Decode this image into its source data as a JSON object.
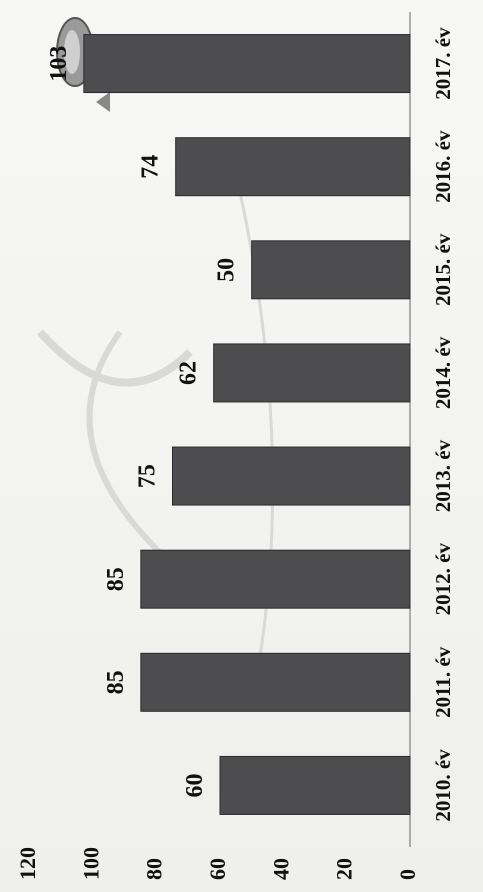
{
  "chart_data": {
    "type": "bar",
    "categories": [
      "2010. év",
      "2011. év",
      "2012. év",
      "2013. év",
      "2014. év",
      "2015. év",
      "2016. év",
      "2017. év"
    ],
    "values": [
      60,
      85,
      85,
      75,
      62,
      50,
      74,
      103
    ],
    "data_labels": [
      "60",
      "85",
      "85",
      "75",
      "62",
      "50",
      "74",
      "103"
    ],
    "ylim": [
      0,
      120
    ],
    "yticks": [
      "0",
      "20",
      "40",
      "60",
      "80",
      "100",
      "120"
    ],
    "orientation": "rotated-90-ccw",
    "grid": false,
    "colors": {
      "bar": "#4d4d4f",
      "text": "#111111"
    }
  }
}
